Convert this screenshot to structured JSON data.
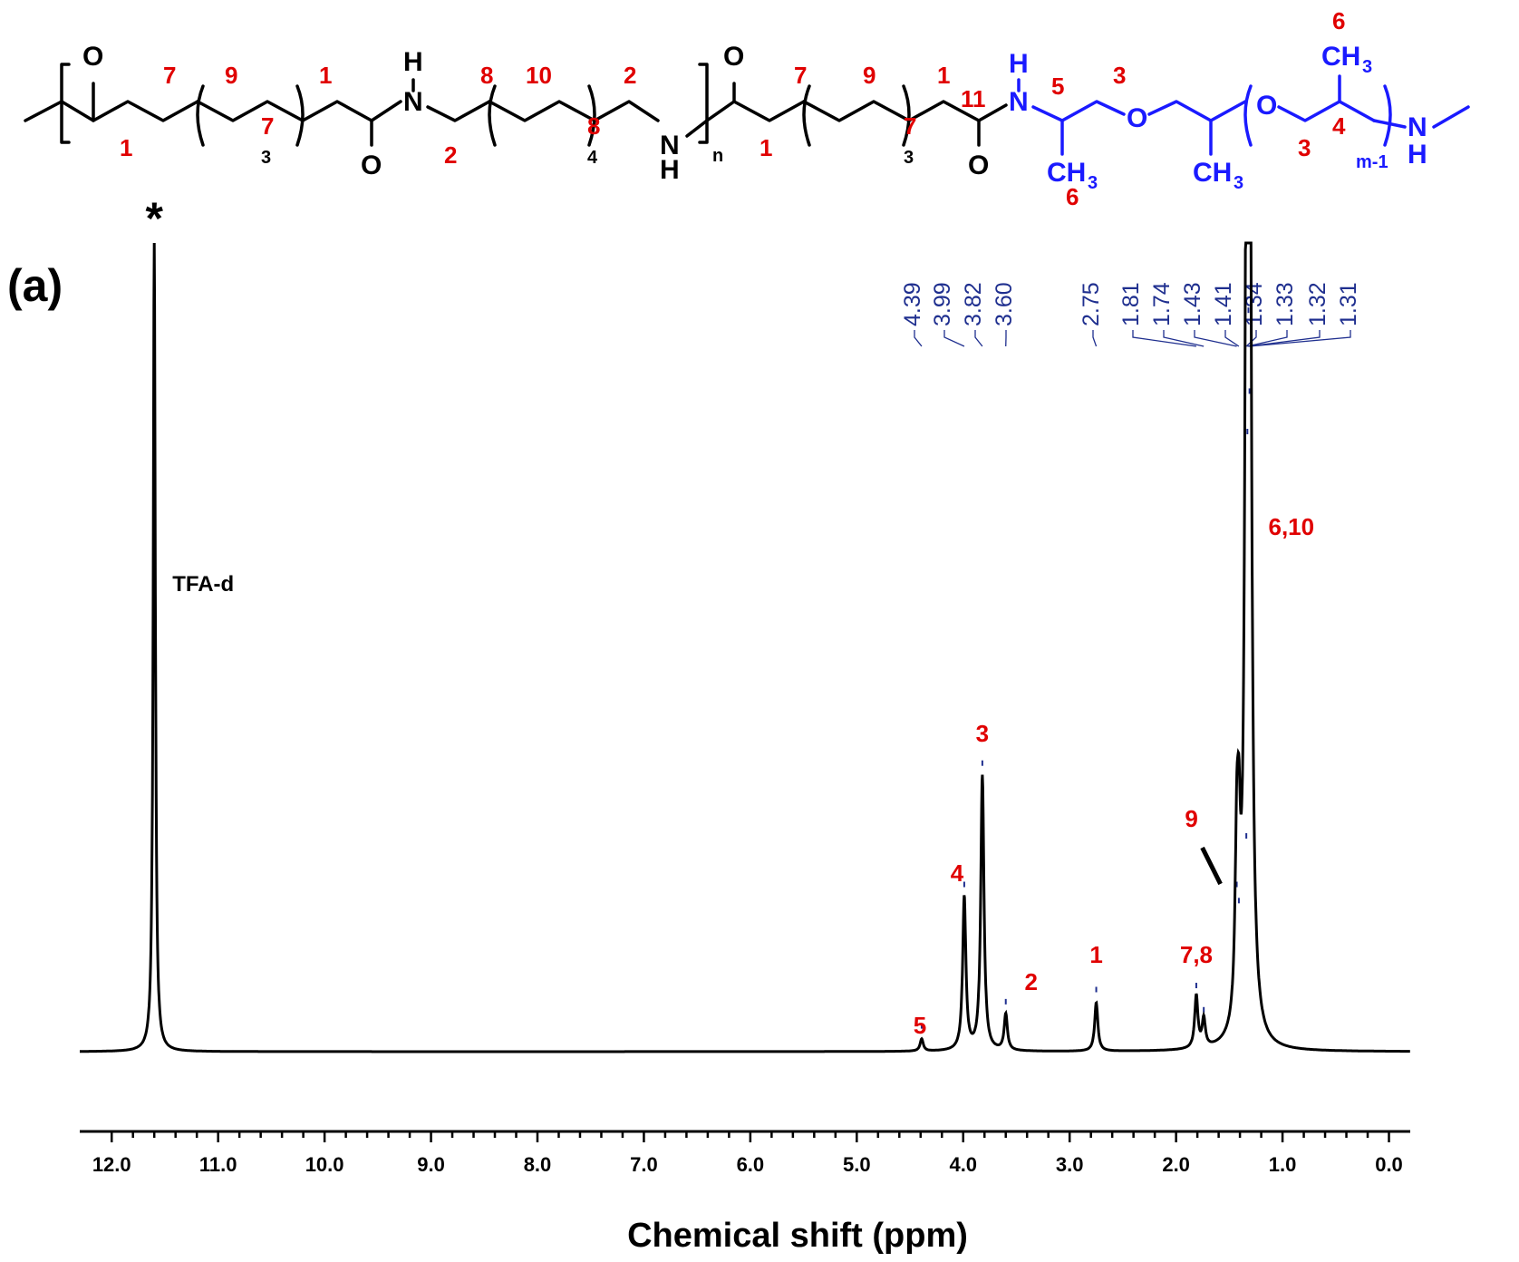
{
  "panel_label": "(a)",
  "chart_data": {
    "type": "line",
    "title": "",
    "xlabel": "Chemical shift (ppm)",
    "ylabel": "",
    "xlim": [
      12.3,
      -0.2
    ],
    "x_reversed": true,
    "x_ticks": [
      "12.0",
      "11.0",
      "10.0",
      "9.0",
      "8.0",
      "7.0",
      "6.0",
      "5.0",
      "4.0",
      "3.0",
      "2.0",
      "1.0",
      "0.0"
    ],
    "x_tick_values": [
      12.0,
      11.0,
      10.0,
      9.0,
      8.0,
      7.0,
      6.0,
      5.0,
      4.0,
      3.0,
      2.0,
      1.0,
      0.0
    ],
    "y_ticks_shown": false,
    "grid": false,
    "legend": "none",
    "line_color": "#000000",
    "solvent_peak": {
      "shift": 11.6,
      "label": "TFA-d",
      "marker": "*",
      "relative_height": 1.0
    },
    "peaks": [
      {
        "shift": 4.39,
        "height": 0.015,
        "label": "5"
      },
      {
        "shift": 3.99,
        "height": 0.19,
        "label": "4"
      },
      {
        "shift": 3.82,
        "height": 0.34,
        "label": "3"
      },
      {
        "shift": 3.6,
        "height": 0.045,
        "label": "2"
      },
      {
        "shift": 2.75,
        "height": 0.06,
        "label": "1"
      },
      {
        "shift": 1.81,
        "height": 0.065,
        "label": "7,8"
      },
      {
        "shift": 1.74,
        "height": 0.035,
        "label": ""
      },
      {
        "shift": 1.43,
        "height": 0.19,
        "label": "9"
      },
      {
        "shift": 1.41,
        "height": 0.17,
        "label": ""
      },
      {
        "shift": 1.34,
        "height": 0.25,
        "label": ""
      },
      {
        "shift": 1.33,
        "height": 0.75,
        "label": ""
      },
      {
        "shift": 1.32,
        "height": 0.9,
        "label": "6,10"
      },
      {
        "shift": 1.31,
        "height": 0.8,
        "label": ""
      }
    ],
    "shift_annotations": [
      "4.39",
      "3.99",
      "3.82",
      "3.60",
      "2.75",
      "1.81",
      "1.74",
      "1.43",
      "1.41",
      "1.34",
      "1.33",
      "1.32",
      "1.31"
    ],
    "annotation_color": "#1f2f8f",
    "peak_label_color": "#e00000"
  },
  "structure": {
    "atoms": {
      "O": "O",
      "N": "N",
      "H": "H",
      "CH": "CH",
      "three": "3"
    },
    "subscripts": {
      "three": "3",
      "four": "4",
      "n": "n",
      "m1": "m-1"
    },
    "red_numbers": [
      "7",
      "9",
      "7",
      "1",
      "1",
      "2",
      "8",
      "10",
      "8",
      "2",
      "7",
      "9",
      "7",
      "1",
      "1",
      "11"
    ],
    "blue_numbers": [
      "5",
      "3",
      "6",
      "3",
      "4",
      "6"
    ],
    "red_color": "#e00000",
    "blue_color": "#1a1aff"
  }
}
